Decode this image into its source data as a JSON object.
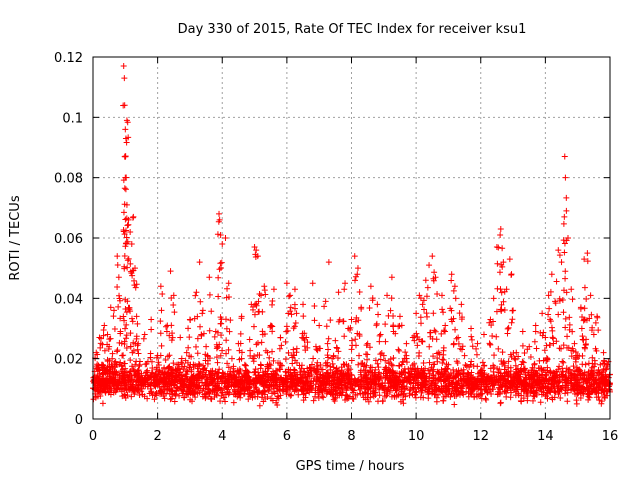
{
  "chart_data": {
    "type": "scatter",
    "title": "Day 330 of 2015, Rate Of TEC Index for receiver ksu1",
    "xlabel": "GPS time / hours",
    "ylabel": "ROTI / TECUs",
    "xlim": [
      0,
      16
    ],
    "ylim": [
      0,
      0.12
    ],
    "xticks": [
      0,
      2,
      4,
      6,
      8,
      10,
      12,
      14,
      16
    ],
    "xtick_labels": [
      "0",
      "2",
      "4",
      "6",
      "8",
      "10",
      "12",
      "14",
      "16"
    ],
    "yticks": [
      0,
      0.02,
      0.04,
      0.06,
      0.08,
      0.1,
      0.12
    ],
    "ytick_labels": [
      "0",
      "0.02",
      "0.04",
      "0.06",
      "0.08",
      "0.1",
      "0.12"
    ],
    "grid": true,
    "marker": "+",
    "series": [
      {
        "name": "ROTI",
        "color": "#ff0000",
        "note": "dense scatter; values below are representative points read off the plot",
        "points": [
          [
            0.05,
            0.014
          ],
          [
            0.1,
            0.022
          ],
          [
            0.15,
            0.009
          ],
          [
            0.2,
            0.027
          ],
          [
            0.25,
            0.012
          ],
          [
            0.3,
            0.018
          ],
          [
            0.35,
            0.031
          ],
          [
            0.4,
            0.011
          ],
          [
            0.45,
            0.016
          ],
          [
            0.5,
            0.024
          ],
          [
            0.55,
            0.037
          ],
          [
            0.6,
            0.013
          ],
          [
            0.65,
            0.036
          ],
          [
            0.7,
            0.019
          ],
          [
            0.75,
            0.054
          ],
          [
            0.8,
            0.047
          ],
          [
            0.85,
            0.029
          ],
          [
            0.9,
            0.021
          ],
          [
            0.95,
            0.117
          ],
          [
            0.97,
            0.113
          ],
          [
            0.98,
            0.104
          ],
          [
            1.0,
            0.096
          ],
          [
            1.02,
            0.093
          ],
          [
            1.05,
            0.099
          ],
          [
            1.0,
            0.08
          ],
          [
            1.05,
            0.071
          ],
          [
            1.1,
            0.066
          ],
          [
            1.15,
            0.062
          ],
          [
            1.2,
            0.058
          ],
          [
            1.25,
            0.067
          ],
          [
            1.3,
            0.05
          ],
          [
            1.35,
            0.034
          ],
          [
            1.4,
            0.025
          ],
          [
            1.5,
            0.015
          ],
          [
            1.6,
            0.028
          ],
          [
            1.7,
            0.019
          ],
          [
            1.8,
            0.033
          ],
          [
            1.9,
            0.012
          ],
          [
            2.0,
            0.021
          ],
          [
            2.1,
            0.044
          ],
          [
            2.2,
            0.017
          ],
          [
            2.3,
            0.031
          ],
          [
            2.4,
            0.049
          ],
          [
            2.5,
            0.041
          ],
          [
            2.6,
            0.018
          ],
          [
            2.7,
            0.027
          ],
          [
            2.8,
            0.011
          ],
          [
            2.9,
            0.022
          ],
          [
            3.0,
            0.033
          ],
          [
            3.1,
            0.014
          ],
          [
            3.2,
            0.042
          ],
          [
            3.3,
            0.052
          ],
          [
            3.4,
            0.036
          ],
          [
            3.5,
            0.024
          ],
          [
            3.6,
            0.047
          ],
          [
            3.7,
            0.016
          ],
          [
            3.8,
            0.029
          ],
          [
            3.9,
            0.068
          ],
          [
            3.92,
            0.066
          ],
          [
            3.95,
            0.061
          ],
          [
            4.0,
            0.058
          ],
          [
            4.1,
            0.06
          ],
          [
            4.2,
            0.045
          ],
          [
            4.3,
            0.02
          ],
          [
            4.4,
            0.012
          ],
          [
            4.5,
            0.025
          ],
          [
            4.6,
            0.034
          ],
          [
            4.7,
            0.018
          ],
          [
            4.8,
            0.014
          ],
          [
            4.9,
            0.038
          ],
          [
            5.0,
            0.057
          ],
          [
            5.05,
            0.056
          ],
          [
            5.1,
            0.054
          ],
          [
            5.2,
            0.041
          ],
          [
            5.3,
            0.044
          ],
          [
            5.4,
            0.022
          ],
          [
            5.5,
            0.031
          ],
          [
            5.6,
            0.043
          ],
          [
            5.7,
            0.016
          ],
          [
            5.8,
            0.027
          ],
          [
            5.9,
            0.013
          ],
          [
            6.0,
            0.045
          ],
          [
            6.1,
            0.041
          ],
          [
            6.2,
            0.023
          ],
          [
            6.3,
            0.035
          ],
          [
            6.4,
            0.013
          ],
          [
            6.5,
            0.038
          ],
          [
            6.6,
            0.027
          ],
          [
            6.7,
            0.017
          ],
          [
            6.8,
            0.045
          ],
          [
            6.9,
            0.024
          ],
          [
            7.0,
            0.031
          ],
          [
            7.1,
            0.012
          ],
          [
            7.2,
            0.039
          ],
          [
            7.3,
            0.052
          ],
          [
            7.4,
            0.02
          ],
          [
            7.5,
            0.026
          ],
          [
            7.6,
            0.042
          ],
          [
            7.7,
            0.015
          ],
          [
            7.8,
            0.045
          ],
          [
            7.9,
            0.03
          ],
          [
            8.0,
            0.033
          ],
          [
            8.1,
            0.054
          ],
          [
            8.2,
            0.05
          ],
          [
            8.3,
            0.037
          ],
          [
            8.4,
            0.018
          ],
          [
            8.5,
            0.025
          ],
          [
            8.6,
            0.044
          ],
          [
            8.7,
            0.013
          ],
          [
            8.8,
            0.038
          ],
          [
            8.9,
            0.028
          ],
          [
            9.0,
            0.021
          ],
          [
            9.1,
            0.041
          ],
          [
            9.2,
            0.016
          ],
          [
            9.3,
            0.029
          ],
          [
            9.4,
            0.012
          ],
          [
            9.5,
            0.034
          ],
          [
            9.6,
            0.019
          ],
          [
            9.7,
            0.025
          ],
          [
            9.8,
            0.014
          ],
          [
            9.9,
            0.027
          ],
          [
            10.0,
            0.035
          ],
          [
            10.1,
            0.041
          ],
          [
            10.2,
            0.038
          ],
          [
            10.3,
            0.046
          ],
          [
            10.4,
            0.051
          ],
          [
            10.5,
            0.054
          ],
          [
            10.6,
            0.047
          ],
          [
            10.7,
            0.022
          ],
          [
            10.8,
            0.041
          ],
          [
            10.9,
            0.031
          ],
          [
            11.0,
            0.018
          ],
          [
            11.1,
            0.048
          ],
          [
            11.2,
            0.044
          ],
          [
            11.3,
            0.027
          ],
          [
            11.4,
            0.038
          ],
          [
            11.5,
            0.021
          ],
          [
            11.6,
            0.013
          ],
          [
            11.7,
            0.03
          ],
          [
            11.8,
            0.011
          ],
          [
            11.9,
            0.025
          ],
          [
            12.0,
            0.016
          ],
          [
            12.1,
            0.028
          ],
          [
            12.2,
            0.014
          ],
          [
            12.3,
            0.033
          ],
          [
            12.4,
            0.04
          ],
          [
            12.5,
            0.057
          ],
          [
            12.6,
            0.061
          ],
          [
            12.62,
            0.063
          ],
          [
            12.7,
            0.052
          ],
          [
            12.8,
            0.043
          ],
          [
            12.9,
            0.053
          ],
          [
            13.0,
            0.036
          ],
          [
            13.1,
            0.022
          ],
          [
            13.2,
            0.014
          ],
          [
            13.3,
            0.029
          ],
          [
            13.4,
            0.011
          ],
          [
            13.5,
            0.024
          ],
          [
            13.6,
            0.017
          ],
          [
            13.7,
            0.031
          ],
          [
            13.8,
            0.013
          ],
          [
            13.9,
            0.035
          ],
          [
            14.0,
            0.027
          ],
          [
            14.1,
            0.041
          ],
          [
            14.2,
            0.048
          ],
          [
            14.3,
            0.039
          ],
          [
            14.4,
            0.056
          ],
          [
            14.5,
            0.052
          ],
          [
            14.6,
            0.087
          ],
          [
            14.62,
            0.08
          ],
          [
            14.65,
            0.069
          ],
          [
            14.7,
            0.06
          ],
          [
            14.8,
            0.043
          ],
          [
            14.9,
            0.025
          ],
          [
            15.0,
            0.021
          ],
          [
            15.1,
            0.037
          ],
          [
            15.2,
            0.033
          ],
          [
            15.3,
            0.055
          ],
          [
            15.4,
            0.041
          ],
          [
            15.5,
            0.028
          ],
          [
            15.6,
            0.034
          ],
          [
            15.7,
            0.018
          ],
          [
            15.8,
            0.022
          ],
          [
            15.9,
            0.012
          ],
          [
            15.95,
            0.019
          ],
          [
            16.0,
            0.009
          ],
          [
            15.2,
            0.053
          ],
          [
            6.25,
            0.043
          ],
          [
            9.25,
            0.047
          ],
          [
            0.45,
            0.028
          ]
        ]
      }
    ],
    "baseline_band": {
      "description": "dense background band of points",
      "center": 0.012,
      "spread": 0.008,
      "min": 0.003,
      "max": 0.026
    }
  }
}
